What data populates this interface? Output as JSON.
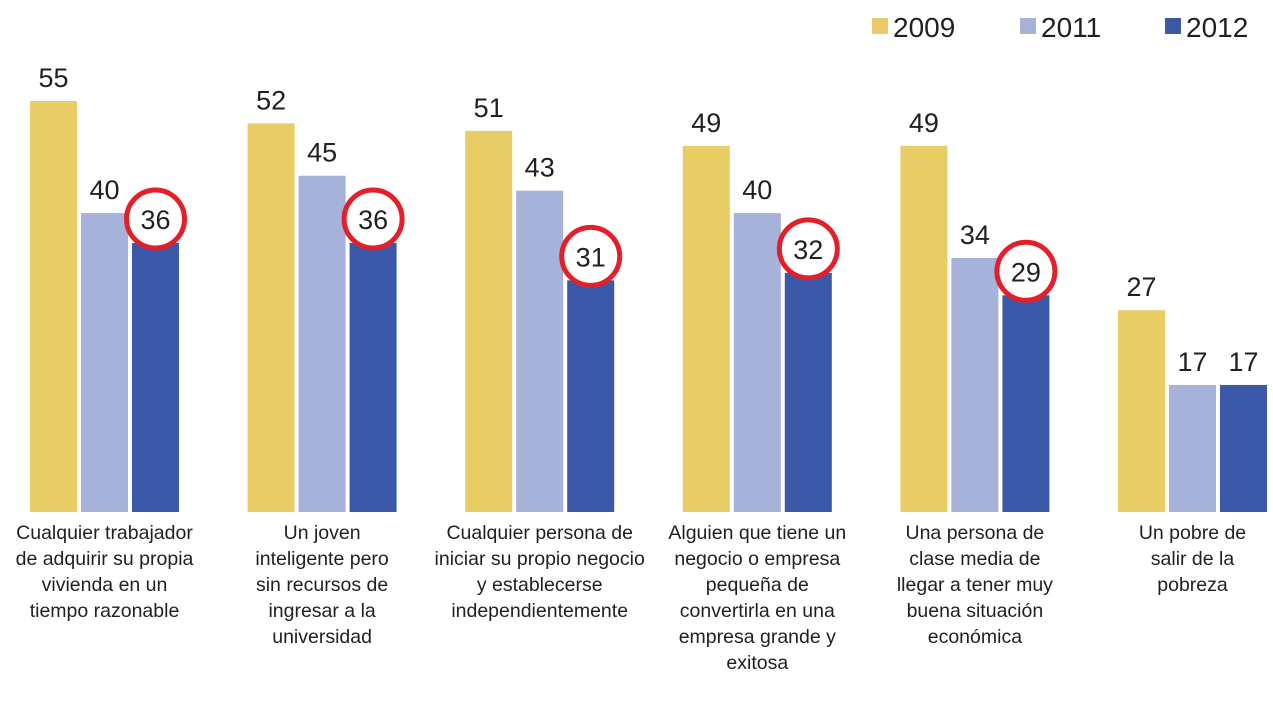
{
  "chart_data": {
    "type": "bar",
    "categories": [
      "Cualquier trabajador de adquirir su propia vivienda en un tiempo razonable",
      "Un joven inteligente pero sin recursos de ingresar a la universidad",
      "Cualquier persona de iniciar su propio negocio y establecerse independientemente",
      "Alguien que tiene un negocio o empresa pequeña de convertirla en una empresa grande y exitosa",
      "Una persona de clase media de llegar a tener muy buena situación económica",
      "Un pobre de salir de la pobreza"
    ],
    "series": [
      {
        "name": "2009",
        "color": "#e8cc66",
        "values": [
          55,
          52,
          51,
          49,
          49,
          27
        ]
      },
      {
        "name": "2011",
        "color": "#a7b2da",
        "values": [
          40,
          45,
          43,
          40,
          34,
          17
        ]
      },
      {
        "name": "2012",
        "color": "#3c58a8",
        "values": [
          36,
          36,
          31,
          32,
          29,
          17
        ],
        "circled": [
          true,
          true,
          true,
          true,
          true,
          false
        ]
      }
    ],
    "legend": "top-right"
  }
}
